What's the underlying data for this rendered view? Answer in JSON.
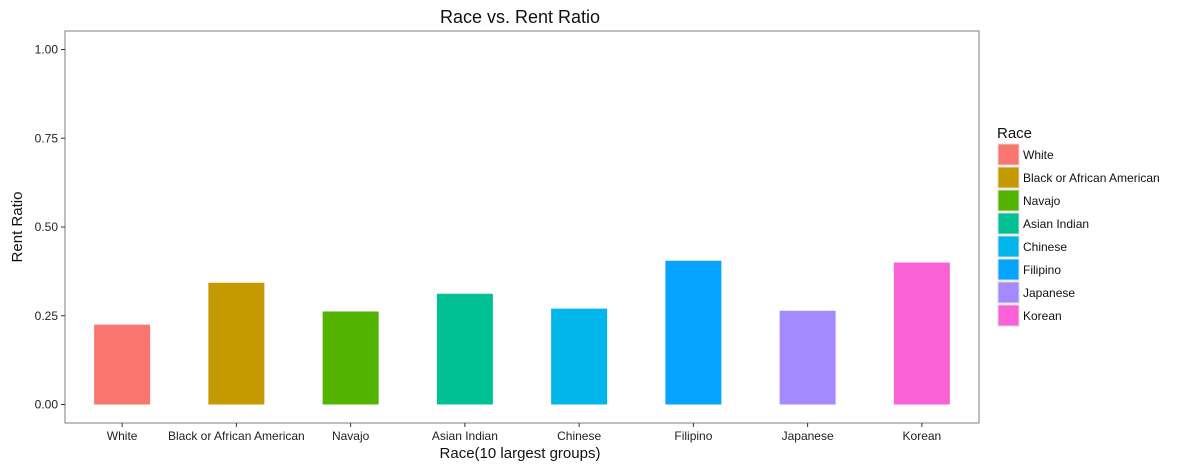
{
  "chart_data": {
    "type": "bar",
    "title": "Race vs. Rent Ratio",
    "xlabel": "Race(10 largest groups)",
    "ylabel": "Rent Ratio",
    "categories": [
      "White",
      "Black or African American",
      "Navajo",
      "Asian Indian",
      "Chinese",
      "Filipino",
      "Japanese",
      "Korean"
    ],
    "values": [
      0.225,
      0.343,
      0.262,
      0.312,
      0.27,
      0.405,
      0.264,
      0.4
    ],
    "colors": [
      "#F8766D",
      "#C49A00",
      "#53B400",
      "#00C094",
      "#00B6EB",
      "#06A4FF",
      "#A58AFF",
      "#FB61D7"
    ],
    "ylim": [
      0,
      1.0
    ],
    "yticks": [
      0.0,
      0.25,
      0.5,
      0.75,
      1.0
    ],
    "ytick_labels": [
      "0.00",
      "0.25",
      "0.50",
      "0.75",
      "1.00"
    ],
    "grid": false,
    "legend": {
      "title": "Race",
      "position": "right",
      "entries": [
        "White",
        "Black or African American",
        "Navajo",
        "Asian Indian",
        "Chinese",
        "Filipino",
        "Japanese",
        "Korean"
      ]
    }
  }
}
